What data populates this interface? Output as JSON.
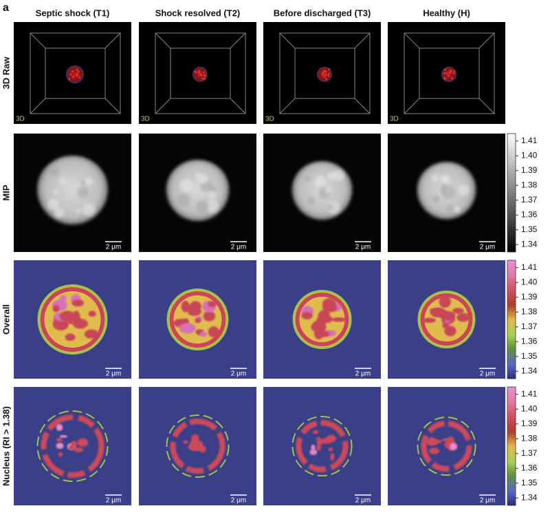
{
  "panel_label": "a",
  "columns": [
    "Septic shock (T1)",
    "Shock resolved (T2)",
    "Before discharged (T3)",
    "Healthy (H)"
  ],
  "rows": [
    "3D Raw",
    "MIP",
    "Overall",
    "Nucleus (RI > 1.38)"
  ],
  "view_label": "3D",
  "scale_bar": "2 μm",
  "colorbar": {
    "lim": [
      1.335,
      1.415
    ],
    "ticks": [
      1.34,
      1.35,
      1.36,
      1.37,
      1.38,
      1.39,
      {
        "value": 1.4,
        "label": "1.40"
      },
      1.41
    ]
  }
}
